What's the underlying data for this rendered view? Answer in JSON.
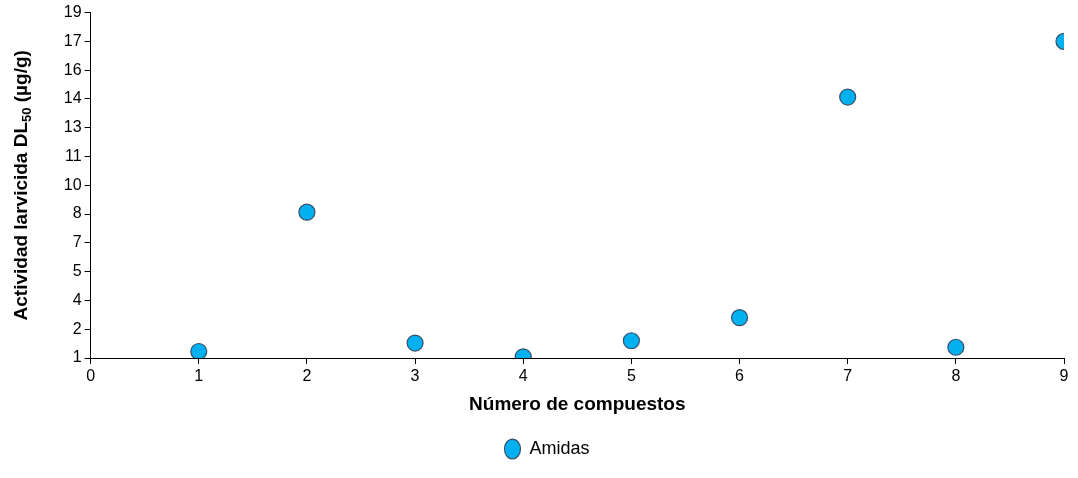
{
  "chart_data": {
    "type": "scatter",
    "xlabel": "Número de compuestos",
    "ylabel": "Actividad larvicida DL$_{50}$ (µg/g)",
    "x": [
      1,
      2,
      3,
      4,
      5,
      6,
      7,
      8,
      9
    ],
    "series": [
      {
        "name": "Amidas",
        "color": "#00b0f0",
        "values": [
          1.34,
          8.6,
          1.78,
          1.06,
          1.9,
          3.1,
          14.6,
          1.56,
          17.5
        ]
      }
    ],
    "xlim": [
      0,
      9
    ],
    "xticks": [
      0,
      1,
      2,
      3,
      4,
      5,
      6,
      7,
      8,
      9
    ],
    "ylim": [
      1,
      19
    ],
    "yticks": [
      1,
      {
        "value": 2.5,
        "label": "2"
      },
      4,
      {
        "value": 5.5,
        "label": "5"
      },
      7,
      {
        "value": 8.5,
        "label": "8"
      },
      10,
      {
        "value": 11.5,
        "label": "11"
      },
      13,
      {
        "value": 14.5,
        "label": "14"
      },
      16,
      {
        "value": 17.5,
        "label": "17"
      },
      19
    ],
    "grid": false,
    "legend": "bottom",
    "marker": "circle"
  }
}
